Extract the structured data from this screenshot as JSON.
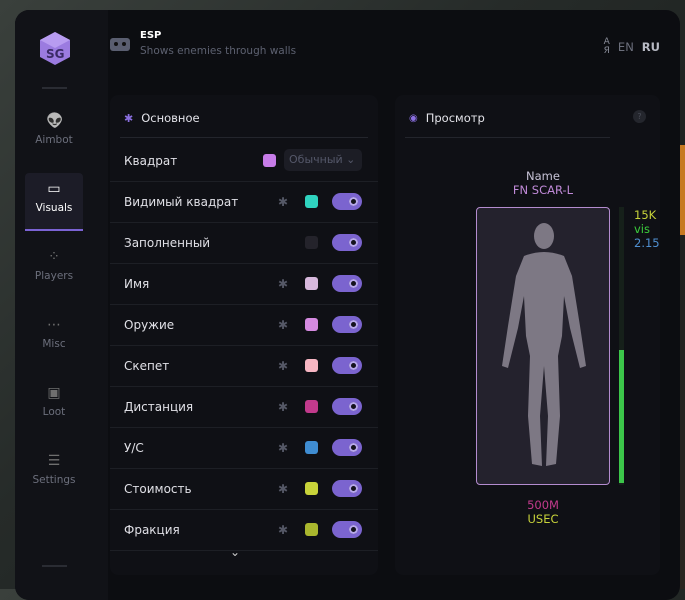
{
  "header": {
    "title": "ESP",
    "subtitle": "Shows enemies through walls",
    "lang_en": "EN",
    "lang_ru": "RU"
  },
  "sidebar": {
    "items": [
      {
        "label": "Aimbot",
        "icon": "alien-icon"
      },
      {
        "label": "Visuals",
        "icon": "vr-headset-icon",
        "active": true
      },
      {
        "label": "Players",
        "icon": "group-icon"
      },
      {
        "label": "Misc",
        "icon": "dots-icon"
      },
      {
        "label": "Loot",
        "icon": "briefcase-icon"
      },
      {
        "label": "Settings",
        "icon": "list-icon"
      }
    ]
  },
  "main_panel": {
    "title": "Основное",
    "box_label": "Квадрат",
    "box_color": "#c77ce8",
    "box_mode": "Обычный",
    "rows": [
      {
        "label": "Видимый квадрат",
        "color": "#2fd3bf",
        "gear": true,
        "on": true
      },
      {
        "label": "Заполненный",
        "color": "#24232b",
        "gear": false,
        "on": true
      },
      {
        "label": "Имя",
        "color": "#d7b8dc",
        "gear": true,
        "on": true
      },
      {
        "label": "Оружие",
        "color": "#d58ae0",
        "gear": true,
        "on": true
      },
      {
        "label": "Скепет",
        "color": "#f7b6c3",
        "gear": true,
        "on": true
      },
      {
        "label": "Дистанция",
        "color": "#c23a8c",
        "gear": true,
        "on": true
      },
      {
        "label": "У/С",
        "color": "#3f8dd2",
        "gear": true,
        "on": true
      },
      {
        "label": "Стоимость",
        "color": "#c8d33a",
        "gear": true,
        "on": true
      },
      {
        "label": "Фракция",
        "color": "#aab72e",
        "gear": true,
        "on": true
      }
    ]
  },
  "preview": {
    "title": "Просмотр",
    "help": "?",
    "name": "Name",
    "weapon": "FN SCAR-L",
    "value": "15K",
    "visible": "vis",
    "kd": "2.15",
    "distance": "500M",
    "faction": "USEC",
    "health_fraction": 0.48
  }
}
